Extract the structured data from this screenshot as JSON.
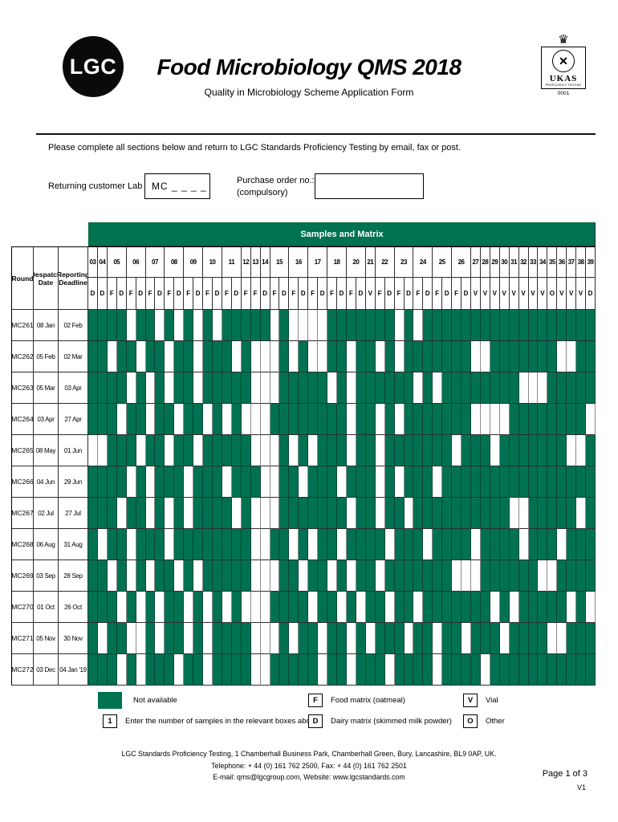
{
  "header": {
    "logo_text": "LGC",
    "title": "Food Microbiology QMS 2018",
    "subtitle": "Quality in Microbiology Scheme Application Form",
    "ukas": {
      "name": "UKAS",
      "subtext": "PROFICIENCY TESTING",
      "number": "0001"
    }
  },
  "intro": "Please complete all sections below and return to LGC Standards Proficiency Testing by email, fax or post.",
  "form": {
    "lab_id_label": "Returning customer Lab ID:",
    "lab_id_value": "MC _ _ _ _",
    "po_label": "Purchase order no.:",
    "po_sublabel": "(compulsory)",
    "po_value": ""
  },
  "table": {
    "banner": "Samples and Matrix",
    "left_headers": [
      "Round",
      "Despatch Date",
      "Reporting Deadline"
    ],
    "groups": [
      {
        "num": "03",
        "subs": [
          "D"
        ]
      },
      {
        "num": "04",
        "subs": [
          "D"
        ]
      },
      {
        "num": "05",
        "subs": [
          "F",
          "D"
        ]
      },
      {
        "num": "06",
        "subs": [
          "F",
          "D"
        ]
      },
      {
        "num": "07",
        "subs": [
          "F",
          "D"
        ]
      },
      {
        "num": "08",
        "subs": [
          "F",
          "D"
        ]
      },
      {
        "num": "09",
        "subs": [
          "F",
          "D"
        ]
      },
      {
        "num": "10",
        "subs": [
          "F",
          "D"
        ]
      },
      {
        "num": "11",
        "subs": [
          "F",
          "D"
        ]
      },
      {
        "num": "12",
        "subs": [
          "F"
        ]
      },
      {
        "num": "13",
        "subs": [
          "F"
        ]
      },
      {
        "num": "14",
        "subs": [
          "D"
        ]
      },
      {
        "num": "15",
        "subs": [
          "F",
          "D"
        ]
      },
      {
        "num": "16",
        "subs": [
          "F",
          "D"
        ]
      },
      {
        "num": "17",
        "subs": [
          "F",
          "D"
        ]
      },
      {
        "num": "18",
        "subs": [
          "F",
          "D"
        ]
      },
      {
        "num": "20",
        "subs": [
          "F",
          "D"
        ]
      },
      {
        "num": "21",
        "subs": [
          "V"
        ]
      },
      {
        "num": "22",
        "subs": [
          "F",
          "D"
        ]
      },
      {
        "num": "23",
        "subs": [
          "F",
          "D"
        ]
      },
      {
        "num": "24",
        "subs": [
          "F",
          "D"
        ]
      },
      {
        "num": "25",
        "subs": [
          "F",
          "D"
        ]
      },
      {
        "num": "26",
        "subs": [
          "F",
          "D"
        ]
      },
      {
        "num": "27",
        "subs": [
          "V"
        ]
      },
      {
        "num": "28",
        "subs": [
          "V"
        ]
      },
      {
        "num": "29",
        "subs": [
          "V"
        ]
      },
      {
        "num": "30",
        "subs": [
          "V"
        ]
      },
      {
        "num": "31",
        "subs": [
          "V"
        ]
      },
      {
        "num": "32",
        "subs": [
          "V"
        ]
      },
      {
        "num": "33",
        "subs": [
          "V"
        ]
      },
      {
        "num": "34",
        "subs": [
          "V"
        ]
      },
      {
        "num": "35",
        "subs": [
          "O"
        ]
      },
      {
        "num": "36",
        "subs": [
          "V"
        ]
      },
      {
        "num": "37",
        "subs": [
          "V"
        ]
      },
      {
        "num": "38",
        "subs": [
          "V"
        ]
      },
      {
        "num": "39",
        "subs": [
          "D"
        ]
      }
    ],
    "rows": [
      {
        "round": "MC261",
        "despatch": "08 Jan",
        "deadline": "02 Feb",
        "cells": "GGGGWGGWGWGWGWGGGGGWGWWWWGGGGGGGWGWGGGGGGGGGGGGGGGGGG"
      },
      {
        "round": "MC262",
        "despatch": "05 Feb",
        "deadline": "02 Mar",
        "cells": "GGWGGWGGWGGWGGGWGWWWGWGWWGGWGGWGWGGGGGGGWWGGGGGGGWWGG"
      },
      {
        "round": "MC263",
        "despatch": "05 Mar",
        "deadline": "03 Apr",
        "cells": "GGGGWGWGWGGWGGGGGWWWGGGGGWGWGGGGGGWGWGGGGGGGGWWWGGGGG"
      },
      {
        "round": "MC264",
        "despatch": "03 Apr",
        "deadline": "27 Apr",
        "cells": "GGGWGGWGGWGGWGWGWWWGGGGGGGGWGGWGWGGGGGGGWWWWGGGGGGGGW"
      },
      {
        "round": "MC265",
        "despatch": "08 May",
        "deadline": "01 Jun",
        "cells": "WWGGGWGGWGGWGGGGGWWWGWGWGGGWGGWGGGGGGGWGGGWGGGGGGGWWG"
      },
      {
        "round": "MC266",
        "despatch": "04 Jun",
        "deadline": "29 Jun",
        "cells": "GGGGWGWGGGWGGGWGGGWWGGWGGGWGGGWGWGGGWGGGGGGGGGGGGGGGG"
      },
      {
        "round": "MC267",
        "despatch": "02 Jul",
        "deadline": "27 Jul",
        "cells": "GGGWGGWGWGWGGGGWGWWWGGGGGGGWGGWGGWGGGGGGGGGGWWGGGGGWG"
      },
      {
        "round": "MC268",
        "despatch": "06 Aug",
        "deadline": "31 Aug",
        "cells": "GWGGWGGGWGGGGGGGGWWGGWGWGGWGGGGWGGGWGGGGWGGGGWGGGWGGG"
      },
      {
        "round": "MC269",
        "despatch": "03 Sep",
        "deadline": "28 Sep",
        "cells": "GGWGWGWGGWGWGGGGGWWWGGWGGWGWGGWGGGGGGGWWWGGGGGGWWGGGG"
      },
      {
        "round": "MC270",
        "despatch": "01 Oct",
        "deadline": "26 Oct",
        "cells": "GGGWGWGWGGWGWGWGWWWGGGGWGGWGWGGWGGWGGGGGGGWGWGGGGGWGW"
      },
      {
        "round": "MC271",
        "despatch": "05 Nov",
        "deadline": "30 Nov",
        "cells": "GWGGWWGWGGWGWGGGGWWWGWGGWGGWGWGGGWGGWGGWGGGWGGGGWWGGG"
      },
      {
        "round": "MC272",
        "despatch": "03 Dec",
        "deadline": "04 Jan '19",
        "cells": "GGGWGWGGGWGGWGGGGWWGGGGGWGGWGGGWGGGGWGGGGWGGGGGGGGGGG"
      }
    ]
  },
  "legend": {
    "not_available": "Not available",
    "enter_key": "1",
    "enter_label": "Enter the number of samples in the relevant boxes above",
    "f_key": "F",
    "f_label": "Food matrix (oatmeal)",
    "d_key": "D",
    "d_label": "Dairy  matrix  (skimmed milk powder)",
    "v_key": "V",
    "v_label": "Vial",
    "o_key": "O",
    "o_label": "Other"
  },
  "footer": {
    "address": "LGC Standards Proficiency Testing, 1 Chamberhall Business Park, Chamberhall Green, Bury, Lancashire, BL9 0AP, UK.",
    "phone": "Telephone: + 44 (0) 161 762 2500, Fax: + 44 (0) 161 762 2501",
    "email": "E-mail: qms@lgcgroup.com, Website: www.lgcstandards.com",
    "page": "Page 1 of 3",
    "version": "V1"
  },
  "colors": {
    "green": "#007251"
  }
}
